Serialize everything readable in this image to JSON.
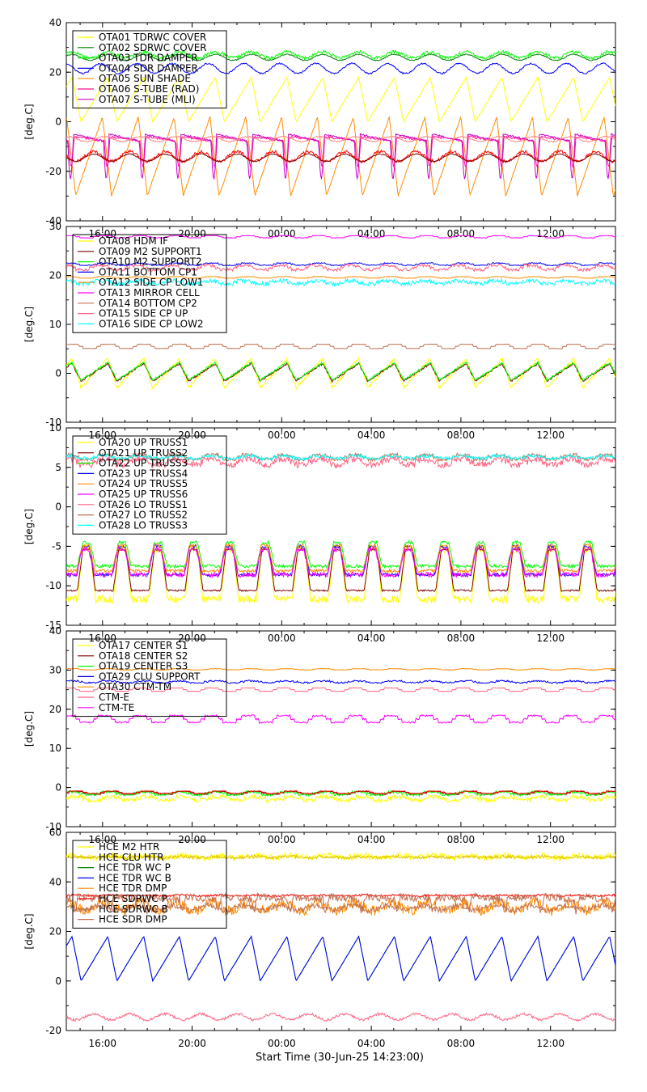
{
  "figure": {
    "xlabel": "Start Time (30-Jun-25 14:23:00)",
    "x_ticks": [
      "16:00",
      "20:00",
      "00:00",
      "04:00",
      "08:00",
      "12:00"
    ],
    "x_range_hours": [
      14.3833,
      38.9
    ]
  },
  "chart_data": [
    {
      "type": "line",
      "ylabel": "[deg.C]",
      "ylim": [
        -40,
        40
      ],
      "y_ticks": [
        -40,
        -20,
        0,
        20,
        40
      ],
      "legend_position": "top-left",
      "period_hours": 1.6,
      "series": [
        {
          "name": "OTA01 TDRWC COVER",
          "color": "#ffff00",
          "base": 9,
          "amp": 9,
          "shape": "ramp",
          "phase": 0.6,
          "noise": 0.2
        },
        {
          "name": "OTA02 SDRWC COVER",
          "color": "#008000",
          "base": 26,
          "amp": 1.2,
          "shape": "sine",
          "phase": 0.1,
          "noise": 0.2
        },
        {
          "name": "OTA03 TDR DAMPER",
          "color": "#00ff00",
          "base": 27,
          "amp": 1.2,
          "shape": "sine",
          "phase": 0.1,
          "noise": 0.6
        },
        {
          "name": "OTA04 SDR DAMPER",
          "color": "#0000ff",
          "base": 21.5,
          "amp": 2,
          "shape": "sine",
          "phase": 0.3,
          "noise": 0.3
        },
        {
          "name": "OTA05 SUN SHADE",
          "color": "#ff8c00",
          "base": -14,
          "amp": 16,
          "shape": "ramp",
          "phase": 0.75,
          "noise": 0.3
        },
        {
          "name": "OTA06 S-TUBE (RAD)",
          "color": "#ff1493",
          "base": -12,
          "amp": 6,
          "shape": "spike",
          "phase": 0.8,
          "noise": 0.4
        },
        {
          "name": "OTA07 S-TUBE (MLI)",
          "color": "#cc00cc",
          "base": -14,
          "amp": 9,
          "shape": "spike",
          "phase": 0.82,
          "noise": 0.3
        },
        {
          "name": "",
          "color": "#ff0000",
          "base": -14,
          "amp": 2,
          "shape": "sine",
          "phase": 0.5,
          "noise": 0.6
        },
        {
          "name": "",
          "color": "#800000",
          "base": -14.5,
          "amp": 1.5,
          "shape": "sine",
          "phase": 0.5,
          "noise": 0.2
        },
        {
          "name": "",
          "color": "#ff8080",
          "base": -7,
          "amp": 1,
          "shape": "sine",
          "phase": 0.2,
          "noise": 0.2
        }
      ]
    },
    {
      "type": "line",
      "ylabel": "[deg.C]",
      "ylim": [
        -10,
        30
      ],
      "y_ticks": [
        -10,
        0,
        10,
        20,
        30
      ],
      "legend_position": "top-left",
      "period_hours": 1.6,
      "series": [
        {
          "name": "OTA08 HDM IF",
          "color": "#ffff00",
          "base": 0,
          "amp": 3,
          "shape": "ramp",
          "phase": 0.6,
          "noise": 0.3
        },
        {
          "name": "OTA09 M2 SUPPORT1",
          "color": "#800000",
          "base": 0.2,
          "amp": 1.8,
          "shape": "ramp",
          "phase": 0.6,
          "noise": 0.2
        },
        {
          "name": "OTA10 M2 SUPPORT2",
          "color": "#00ff00",
          "base": 0.4,
          "amp": 1.8,
          "shape": "ramp",
          "phase": 0.6,
          "noise": 0.2
        },
        {
          "name": "OTA11 BOTTOM CP1",
          "color": "#0000ff",
          "base": 22.3,
          "amp": 0.3,
          "shape": "step",
          "phase": 0.2,
          "noise": 0.1
        },
        {
          "name": "OTA12 SIDE CP LOW1",
          "color": "#ff8c00",
          "base": 19.6,
          "amp": 0.2,
          "shape": "step",
          "phase": 0.2,
          "noise": 0.05
        },
        {
          "name": "OTA13 MIRROR CELL",
          "color": "#ff00ff",
          "base": 27.9,
          "amp": 0.3,
          "shape": "step",
          "phase": 0.2,
          "noise": 0.05
        },
        {
          "name": "OTA14 BOTTOM CP2",
          "color": "#c07050",
          "base": 5.5,
          "amp": 0.6,
          "shape": "step",
          "phase": 0.1,
          "noise": 0.05
        },
        {
          "name": "OTA15 SIDE CP UP",
          "color": "#ff6080",
          "base": 21.6,
          "amp": 0.6,
          "shape": "step",
          "phase": 0.3,
          "noise": 0.3
        },
        {
          "name": "OTA16 SIDE CP LOW2",
          "color": "#00ffff",
          "base": 18.6,
          "amp": 0.4,
          "shape": "step",
          "phase": 0.3,
          "noise": 0.4
        }
      ]
    },
    {
      "type": "line",
      "ylabel": "[deg.C]",
      "ylim": [
        -15,
        10
      ],
      "y_ticks": [
        -15,
        -10,
        -5,
        0,
        5,
        10
      ],
      "legend_position": "top-left",
      "period_hours": 1.6,
      "series": [
        {
          "name": "OTA20 UP TRUSS1",
          "color": "#ffff00",
          "base": -8.5,
          "amp": 3.2,
          "shape": "trap",
          "phase": 0.0,
          "noise": 0.5
        },
        {
          "name": "OTA21 UP TRUSS2",
          "color": "#800000",
          "base": -8,
          "amp": 2.6,
          "shape": "trap",
          "phase": 0.0,
          "noise": 0.1
        },
        {
          "name": "OTA22 UP TRUSS3",
          "color": "#00ff00",
          "base": -6,
          "amp": 1.5,
          "shape": "trap",
          "phase": 0.0,
          "noise": 0.2
        },
        {
          "name": "OTA23 UP TRUSS4",
          "color": "#0000ff",
          "base": -6.8,
          "amp": 1.8,
          "shape": "trap",
          "phase": 0.02,
          "noise": 0.2
        },
        {
          "name": "OTA24 UP TRUSS5",
          "color": "#ff8c00",
          "base": -6.5,
          "amp": 1.6,
          "shape": "trap",
          "phase": 0.02,
          "noise": 0.2
        },
        {
          "name": "OTA25 UP TRUSS6",
          "color": "#ff00ff",
          "base": -7,
          "amp": 1.6,
          "shape": "trap",
          "phase": 0.03,
          "noise": 0.3
        },
        {
          "name": "OTA26 LO TRUSS1",
          "color": "#ff6080",
          "base": 5.7,
          "amp": 0.5,
          "shape": "step",
          "phase": 0.2,
          "noise": 0.4
        },
        {
          "name": "OTA27 LO TRUSS2",
          "color": "#c07050",
          "base": 6.3,
          "amp": 0.4,
          "shape": "step",
          "phase": 0.2,
          "noise": 0.2
        },
        {
          "name": "OTA28 LO TRUSS3",
          "color": "#00ffff",
          "base": 6.3,
          "amp": 0.2,
          "shape": "step",
          "phase": 0.2,
          "noise": 0.2
        }
      ]
    },
    {
      "type": "line",
      "ylabel": "[deg.C]",
      "ylim": [
        -10,
        40
      ],
      "y_ticks": [
        -10,
        0,
        10,
        20,
        30,
        40
      ],
      "legend_position": "top-left",
      "period_hours": 1.6,
      "series": [
        {
          "name": "OTA17 CENTER S1",
          "color": "#ffff00",
          "base": -2.8,
          "amp": 0.6,
          "shape": "step",
          "phase": 0.0,
          "noise": 0.5
        },
        {
          "name": "OTA18 CENTER S2",
          "color": "#800000",
          "base": -1.4,
          "amp": 0.5,
          "shape": "step",
          "phase": 0.0,
          "noise": 0.1
        },
        {
          "name": "OTA19 CENTER S3",
          "color": "#00ff00",
          "base": -1.5,
          "amp": 0.5,
          "shape": "step",
          "phase": 0.1,
          "noise": 0.3
        },
        {
          "name": "OTA29 CLU SUPPORT",
          "color": "#0000ff",
          "base": 27,
          "amp": 0.3,
          "shape": "step",
          "phase": 0.1,
          "noise": 0.2
        },
        {
          "name": "OTA30 CTM-TM",
          "color": "#ff8c00",
          "base": 30.2,
          "amp": 0.2,
          "shape": "step",
          "phase": 0.1,
          "noise": 0.05
        },
        {
          "name": "CTM-E",
          "color": "#ff6080",
          "base": 25,
          "amp": 0.6,
          "shape": "step",
          "phase": 0.2,
          "noise": 0.05
        },
        {
          "name": "CTM-TE",
          "color": "#ff00ff",
          "base": 17.5,
          "amp": 1.2,
          "shape": "step",
          "phase": 0.2,
          "noise": 0.2
        },
        {
          "name": "",
          "color": "#ff0000",
          "base": -1.2,
          "amp": 0.4,
          "shape": "step",
          "phase": 0.0,
          "noise": 0.1
        }
      ]
    },
    {
      "type": "line",
      "ylabel": "[deg.C]",
      "ylim": [
        -20,
        60
      ],
      "y_ticks": [
        -20,
        0,
        20,
        40,
        60
      ],
      "legend_position": "top-left",
      "period_hours": 1.6,
      "series": [
        {
          "name": "HCE M2 HTR",
          "color": "#ffff00",
          "base": 50.2,
          "amp": 0.4,
          "shape": "sine",
          "phase": 0.0,
          "noise": 1.2
        },
        {
          "name": "HCE CLU HTR",
          "color": "#e0c000",
          "base": 50,
          "amp": 0.2,
          "shape": "sine",
          "phase": 0.0,
          "noise": 0.6
        },
        {
          "name": "HCE TDR WC P",
          "color": "#008000",
          "base": 9,
          "amp": 9,
          "shape": "ramp",
          "phase": 0.6,
          "noise": 0.1
        },
        {
          "name": "HCE TDR WC B",
          "color": "#0000ff",
          "base": 9,
          "amp": 9,
          "shape": "ramp",
          "phase": 0.6,
          "noise": 0.1
        },
        {
          "name": "HCE TDR DMP",
          "color": "#ff8c00",
          "base": 30,
          "amp": 1.5,
          "shape": "sine",
          "phase": 0.2,
          "noise": 2.2
        },
        {
          "name": "HCE SDRWC P",
          "color": "#ff0000",
          "base": 34.5,
          "amp": 0.2,
          "shape": "sine",
          "phase": 0.0,
          "noise": 0.4
        },
        {
          "name": "HCE SDRWC B",
          "color": "#c07050",
          "base": 31,
          "amp": 3,
          "shape": "spike",
          "phase": 0.7,
          "noise": 1.5
        },
        {
          "name": "HCE SDR DMP",
          "color": "#c07050",
          "base": 29.5,
          "amp": 1,
          "shape": "sine",
          "phase": 0.3,
          "noise": 1
        },
        {
          "name": "",
          "color": "#ff6080",
          "base": -14.5,
          "amp": 1.2,
          "shape": "sine",
          "phase": 0.5,
          "noise": 0.5
        }
      ]
    }
  ]
}
